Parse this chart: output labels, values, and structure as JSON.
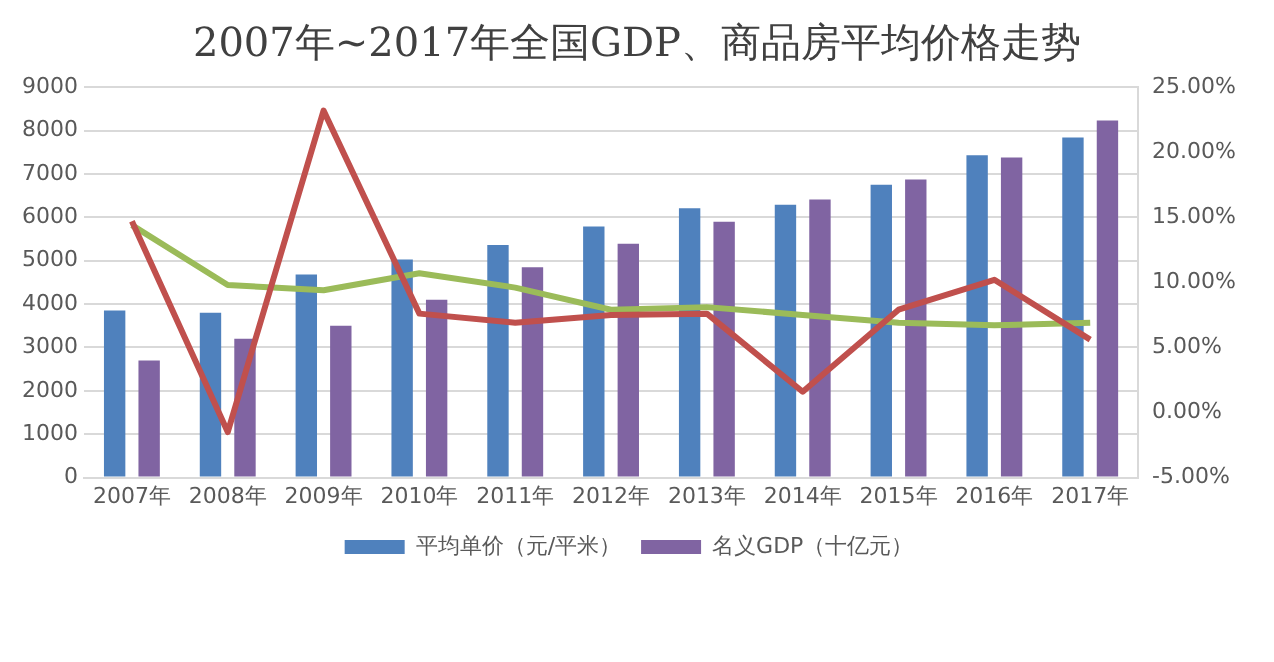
{
  "chart_data": {
    "type": "bar",
    "title": "2007年~2017年全国GDP、商品房平均价格走势",
    "categories": [
      "2007年",
      "2008年",
      "2009年",
      "2010年",
      "2011年",
      "2012年",
      "2013年",
      "2014年",
      "2015年",
      "2016年",
      "2017年"
    ],
    "series": [
      {
        "name": "平均单价（元/平米）",
        "color": "#4f81bd",
        "values": [
          3850,
          3800,
          4680,
          5030,
          5360,
          5790,
          6210,
          6290,
          6750,
          7430,
          7840
        ]
      },
      {
        "name": "名义GDP（十亿元）",
        "color": "#8064a2",
        "values": [
          2700,
          3200,
          3500,
          4100,
          4850,
          5390,
          5900,
          6410,
          6870,
          7380,
          8230
        ]
      },
      {
        "type": "line",
        "axis": "y2",
        "color": "#c0504d",
        "values": [
          14.7,
          -1.5,
          23.2,
          7.6,
          6.9,
          7.5,
          7.6,
          1.6,
          7.9,
          10.2,
          5.6
        ]
      },
      {
        "type": "line",
        "axis": "y2",
        "color": "#9bbb59",
        "values": [
          14.4,
          9.8,
          9.4,
          10.7,
          9.6,
          7.9,
          8.1,
          7.5,
          6.9,
          6.7,
          6.9
        ]
      }
    ],
    "ylim": [
      0,
      9000
    ],
    "yticks": [
      0,
      1000,
      2000,
      3000,
      4000,
      5000,
      6000,
      7000,
      8000,
      9000
    ],
    "y2lim": [
      -5,
      25
    ],
    "y2ticks": [
      {
        "value": -5,
        "label": "-5.00%"
      },
      {
        "value": 0,
        "label": "0.00%"
      },
      {
        "value": 5,
        "label": "5.00%"
      },
      {
        "value": 10,
        "label": "10.00%"
      },
      {
        "value": 15,
        "label": "15.00%"
      },
      {
        "value": 20,
        "label": "20.00%"
      },
      {
        "value": 25,
        "label": "25.00%"
      }
    ],
    "grid": "y",
    "legend": "bottom",
    "marker": "none"
  }
}
